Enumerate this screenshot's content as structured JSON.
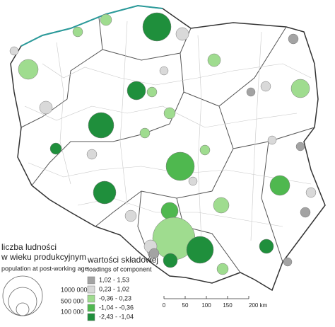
{
  "size_legend": {
    "title": [
      "liczba ludności",
      "w wieku produkcyjnym"
    ],
    "subtitle": "population at post-working age",
    "values": [
      "1000 000",
      "500 000",
      "100 000"
    ]
  },
  "color_legend": {
    "title": "wartości składowej",
    "subtitle": "loadings of component",
    "classes": [
      {
        "label": "1,02 -  1,53",
        "color": "#a3a3a3"
      },
      {
        "label": "0,23 -  1,02",
        "color": "#d9d9d9"
      },
      {
        "label": "-0,36 -  0,23",
        "color": "#9fdc8f"
      },
      {
        "label": "-1,04 - -0,36",
        "color": "#4fb84f"
      },
      {
        "label": "-2,43 - -1,04",
        "color": "#1f8f3c"
      }
    ]
  },
  "scale_bar": {
    "ticks": [
      "0",
      "50",
      "100",
      "150",
      "200 km"
    ]
  }
}
